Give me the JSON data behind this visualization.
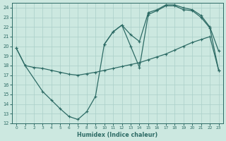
{
  "bg_color": "#cce8e0",
  "grid_color": "#aacfc8",
  "line_color": "#2d6b65",
  "xlabel": "Humidex (Indice chaleur)",
  "ylim": [
    12,
    24.5
  ],
  "xlim": [
    -0.5,
    23.5
  ],
  "yticks": [
    12,
    13,
    14,
    15,
    16,
    17,
    18,
    19,
    20,
    21,
    22,
    23,
    24
  ],
  "xticks": [
    0,
    1,
    2,
    3,
    4,
    5,
    6,
    7,
    8,
    9,
    10,
    11,
    12,
    13,
    14,
    15,
    16,
    17,
    18,
    19,
    20,
    21,
    22,
    23
  ],
  "line1_x": [
    0,
    1,
    2,
    3,
    4,
    5,
    6,
    7,
    8,
    9,
    10,
    11,
    12,
    13,
    14,
    15,
    16,
    17,
    18,
    19,
    20,
    21,
    22,
    23
  ],
  "line1_y": [
    19.8,
    18.0,
    17.8,
    17.7,
    17.5,
    17.3,
    17.1,
    17.0,
    17.15,
    17.3,
    17.5,
    17.7,
    17.9,
    18.1,
    18.3,
    18.6,
    18.9,
    19.2,
    19.6,
    20.0,
    20.4,
    20.7,
    21.0,
    17.5
  ],
  "line2_x": [
    0,
    1,
    3,
    4,
    5,
    6,
    7,
    8,
    9,
    10,
    11,
    12,
    13,
    14,
    15,
    16,
    17,
    18,
    19,
    20,
    21,
    22,
    23
  ],
  "line2_y": [
    19.8,
    18.0,
    15.3,
    14.4,
    13.5,
    12.7,
    12.4,
    13.2,
    14.8,
    20.2,
    21.5,
    22.2,
    20.0,
    17.8,
    23.3,
    23.7,
    24.2,
    24.2,
    23.8,
    23.7,
    23.0,
    21.9,
    17.5
  ],
  "line3_x": [
    10,
    11,
    12,
    13,
    14,
    15,
    16,
    17,
    18,
    19,
    20,
    21,
    22,
    23
  ],
  "line3_y": [
    20.2,
    21.5,
    22.2,
    21.2,
    20.5,
    23.5,
    23.8,
    24.3,
    24.3,
    24.0,
    23.8,
    23.2,
    22.0,
    19.5
  ]
}
